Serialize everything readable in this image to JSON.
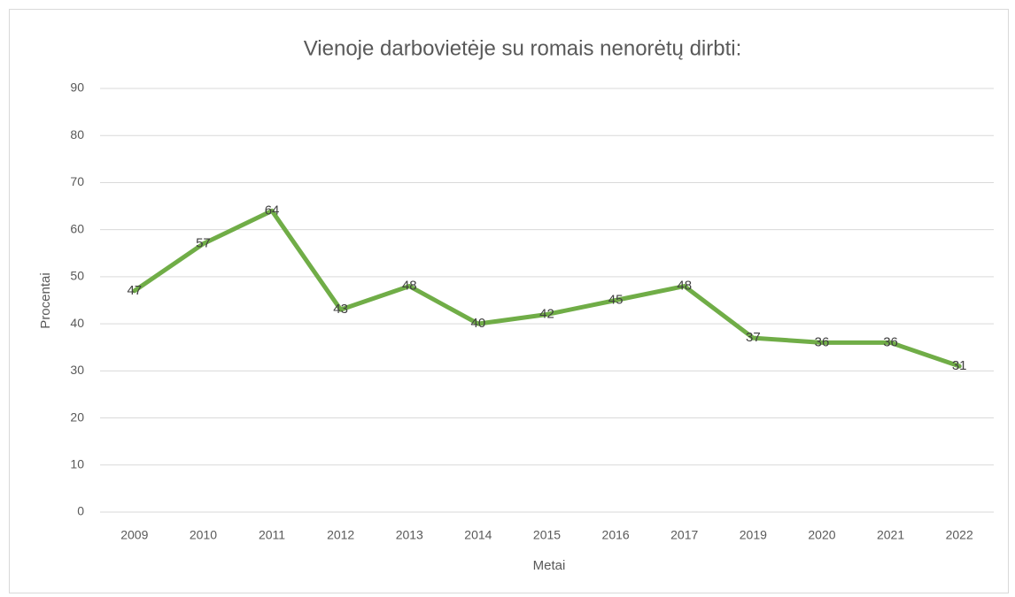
{
  "chart_data": {
    "type": "line",
    "title": "Vienoje darbovietėje su romais nenorėtų dirbti:",
    "x_label": "Metai",
    "y_label": "Procentai",
    "categories": [
      "2009",
      "2010",
      "2011",
      "2012",
      "2013",
      "2014",
      "2015",
      "2016",
      "2017",
      "2019",
      "2020",
      "2021",
      "2022"
    ],
    "series": [
      {
        "name": "Procentai",
        "color": "#70ad47",
        "values": [
          47,
          57,
          64,
          43,
          48,
          40,
          42,
          45,
          48,
          37,
          36,
          36,
          31
        ]
      }
    ],
    "ylim": [
      0,
      90
    ],
    "yticks": [
      0,
      10,
      20,
      30,
      40,
      50,
      60,
      70,
      80,
      90
    ],
    "grid": true,
    "data_labels": true
  }
}
